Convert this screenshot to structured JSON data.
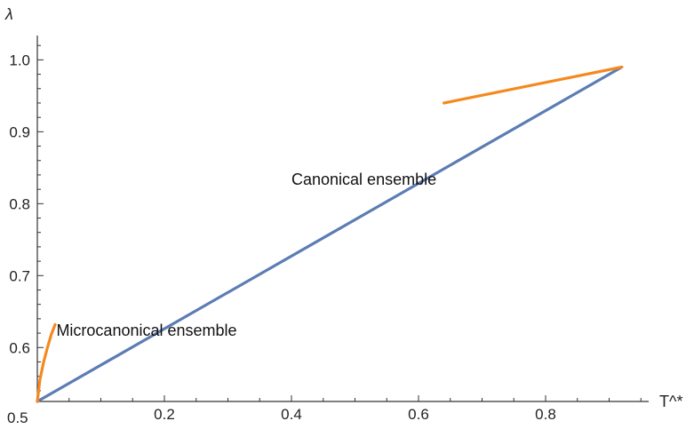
{
  "chart_data": {
    "type": "line",
    "title": "",
    "xlabel": "T^*",
    "ylabel": "λ",
    "xlim": [
      0.0,
      1.0
    ],
    "ylim": [
      0.525,
      1.04
    ],
    "x_ticks": [
      0.2,
      0.4,
      0.6,
      0.8
    ],
    "x_tick_labels": [
      "0.2",
      "0.4",
      "0.6",
      "0.8"
    ],
    "y_ticks": [
      0.6,
      0.7,
      0.8,
      0.9,
      1.0
    ],
    "y_tick_labels": [
      "0.6",
      "0.7",
      "0.8",
      "0.9",
      "1.0"
    ],
    "origin_label": "0.5",
    "grid": false,
    "series": [
      {
        "color": "#5b7db4",
        "x": [
          0.0,
          0.92
        ],
        "y": [
          0.525,
          0.99
        ]
      },
      {
        "color": "#f5891f",
        "x": [
          0.0,
          0.004,
          0.01,
          0.016,
          0.022,
          0.028
        ],
        "y": [
          0.525,
          0.555,
          0.58,
          0.6,
          0.618,
          0.632
        ]
      },
      {
        "color": "#f5891f",
        "x": [
          0.64,
          0.92
        ],
        "y": [
          0.94,
          0.99
        ]
      }
    ],
    "annotations": [
      {
        "text": "Microcanonical ensemble",
        "x": 0.03,
        "y": 0.624
      },
      {
        "text": "Canonical ensemble",
        "x": 0.4,
        "y": 0.834
      }
    ]
  }
}
